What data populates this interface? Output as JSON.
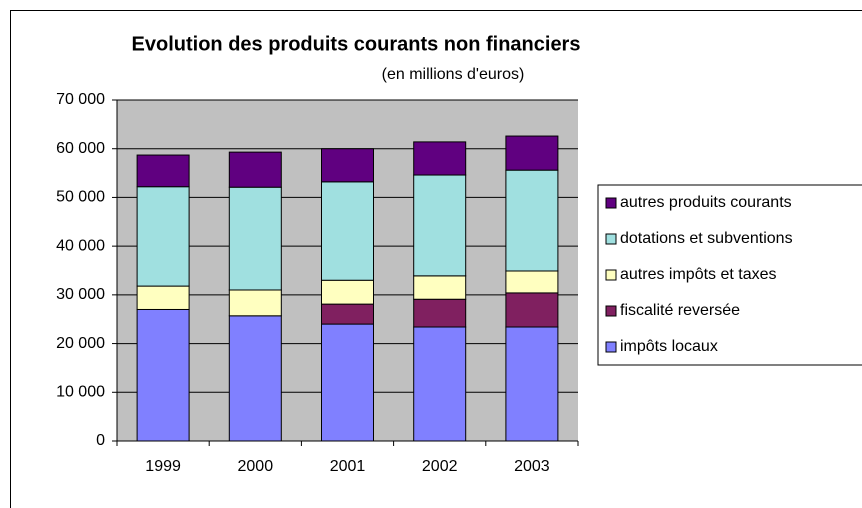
{
  "chart_data": {
    "type": "stacked_bar",
    "title": "Evolution des produits courants non financiers",
    "subtitle": "(en millions d'euros)",
    "categories": [
      "1999",
      "2000",
      "2001",
      "2002",
      "2003"
    ],
    "series": [
      {
        "name": "impôts locaux",
        "color": "#8080ff",
        "values": [
          27000,
          25700,
          24000,
          23400,
          23400
        ]
      },
      {
        "name": "fiscalité reversée",
        "color": "#802060",
        "values": [
          0,
          0,
          4100,
          5700,
          7000
        ]
      },
      {
        "name": "autres impôts et taxes",
        "color": "#ffffc0",
        "values": [
          4800,
          5300,
          4900,
          4800,
          4500
        ]
      },
      {
        "name": "dotations et subventions",
        "color": "#a0e0e0",
        "values": [
          20400,
          21100,
          20200,
          20700,
          20700
        ]
      },
      {
        "name": "autres produits courants",
        "color": "#600080",
        "values": [
          6500,
          7200,
          6800,
          6800,
          7000
        ]
      }
    ],
    "ylim": [
      0,
      70000
    ],
    "yticks": [
      0,
      {
        "value": 10000,
        "label": "10 000"
      },
      {
        "value": 20000,
        "label": "20 000"
      },
      {
        "value": 30000,
        "label": "30 000"
      },
      {
        "value": 40000,
        "label": "40 000"
      },
      {
        "value": 50000,
        "label": "50 000"
      },
      {
        "value": 60000,
        "label": "60 000"
      },
      {
        "value": 70000,
        "label": "70 000"
      }
    ],
    "grid": true,
    "legend": "right",
    "plot_background": "#c0c0c0"
  }
}
